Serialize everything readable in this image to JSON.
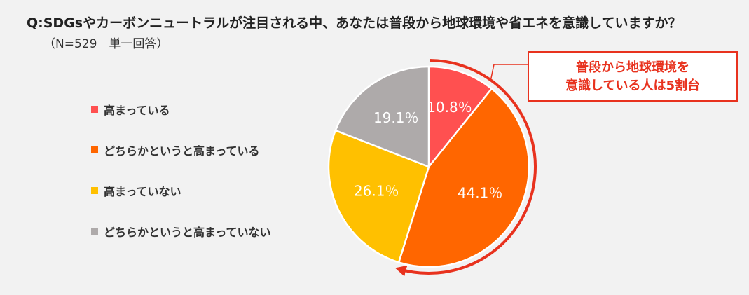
{
  "header": {
    "title": "Q:SDGsやカーボンニュートラルが注目される中、あなたは普段から地球環境や省エネを意識していますか？",
    "subtitle": "（N=529　単一回答）"
  },
  "callout": {
    "line1": "普段から地球環境を",
    "line2": "意識している人は5割台"
  },
  "colors": {
    "callout_accent": "#e8321e"
  },
  "chart_data": {
    "type": "pie",
    "start_angle_deg": 0,
    "direction": "clockwise",
    "slices": [
      {
        "label": "高まっている",
        "value": 10.8,
        "display": "10.8％",
        "color": "#ff5050"
      },
      {
        "label": "どちらかというと高まっている",
        "value": 44.1,
        "display": "44.1％",
        "color": "#ff6600"
      },
      {
        "label": "高まっていない",
        "value": 26.1,
        "display": "26.1％",
        "color": "#ffc000"
      },
      {
        "label": "どちらかというと高まっていない",
        "value": 19.1,
        "display": "19.1％",
        "color": "#aeaaaa"
      }
    ],
    "legend": "left"
  }
}
